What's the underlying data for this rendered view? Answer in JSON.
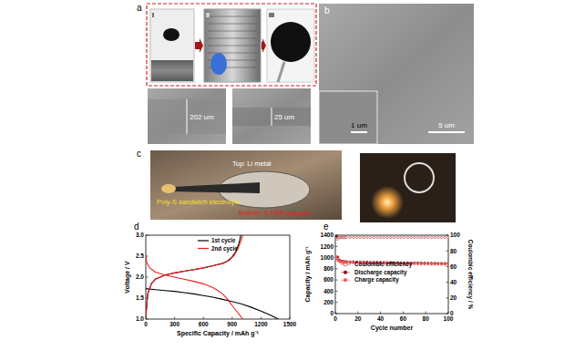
{
  "panels": {
    "a": {
      "label": "a",
      "steps": [
        "I",
        "II",
        "III"
      ],
      "thickness": [
        "202 um",
        "25 um"
      ]
    },
    "b": {
      "label": "b",
      "scale_bars": [
        "1 um",
        "5 um"
      ]
    },
    "c": {
      "label": "c",
      "annotations": [
        "Top: Li metal",
        "Poly-S sandwich electrolyte",
        "Bottom: S PAN cathode"
      ]
    }
  },
  "chart_data": [
    {
      "type": "line",
      "title": "d",
      "x_label": "Specific Capacity / mAh g⁻¹",
      "y_label": "Voltage / V",
      "xlim": [
        0,
        1500
      ],
      "xticks": [
        0,
        300,
        600,
        900,
        1200,
        1500
      ],
      "ylim": [
        1.0,
        3.0
      ],
      "yticks": [
        {
          "value": 1.0,
          "label": "1.0"
        },
        1.5,
        {
          "value": 2.0,
          "label": "2.0"
        },
        2.5,
        {
          "value": 3.0,
          "label": "3.0"
        }
      ],
      "legend": "upper center",
      "series": [
        {
          "name": "1st cycle",
          "color": "#000000",
          "x": [
            0,
            20,
            100,
            200,
            300,
            400,
            500,
            600,
            700,
            800,
            900,
            1000,
            1100,
            1200,
            1300,
            1380,
            null,
            0,
            20,
            60,
            100,
            200,
            300,
            400,
            500,
            600,
            700,
            800,
            850,
            900,
            940,
            970,
            990
          ],
          "values": [
            1.72,
            1.72,
            1.7,
            1.68,
            1.66,
            1.63,
            1.6,
            1.56,
            1.52,
            1.47,
            1.42,
            1.36,
            1.28,
            1.19,
            1.09,
            1.0,
            null,
            1.05,
            1.6,
            1.85,
            1.95,
            2.05,
            2.1,
            2.14,
            2.18,
            2.22,
            2.27,
            2.33,
            2.38,
            2.48,
            2.62,
            2.8,
            3.0
          ]
        },
        {
          "name": "2nd cycle",
          "color": "#e8211d",
          "x": [
            0,
            10,
            40,
            100,
            200,
            300,
            400,
            500,
            600,
            700,
            750,
            800,
            850,
            900,
            950,
            1010,
            null,
            0,
            20,
            60,
            100,
            200,
            300,
            400,
            500,
            600,
            700,
            800,
            870,
            920,
            960,
            990,
            1010
          ],
          "values": [
            2.5,
            2.35,
            2.22,
            2.12,
            2.05,
            2.0,
            1.95,
            1.9,
            1.84,
            1.75,
            1.68,
            1.6,
            1.48,
            1.32,
            1.18,
            1.0,
            null,
            1.05,
            1.6,
            1.85,
            1.95,
            2.05,
            2.1,
            2.14,
            2.18,
            2.22,
            2.27,
            2.32,
            2.4,
            2.52,
            2.68,
            2.85,
            3.0
          ]
        }
      ]
    },
    {
      "type": "scatter",
      "title": "e",
      "x_label": "Cycle number",
      "y_label": "Capacity / mAh g⁻¹",
      "y2_label": "Coulombic efficiency / %",
      "xlim": [
        0,
        100
      ],
      "xticks": [
        0,
        20,
        40,
        60,
        80,
        100
      ],
      "ylim": [
        0,
        1400
      ],
      "yticks": [
        0,
        200,
        400,
        600,
        800,
        1000,
        1200,
        1400
      ],
      "y2lim": [
        0,
        100
      ],
      "y2ticks": [
        0,
        20,
        40,
        60,
        80,
        100
      ],
      "legend": "center left",
      "x": [
        1,
        2,
        3,
        4,
        5,
        6,
        7,
        8,
        9,
        10,
        13,
        16,
        19,
        22,
        25,
        28,
        31,
        34,
        37,
        40,
        43,
        46,
        49,
        52,
        55,
        58,
        61,
        64,
        67,
        70,
        73,
        76,
        79,
        82,
        85,
        88,
        91,
        94,
        97,
        100
      ],
      "series": [
        {
          "name": "Coulombic efficiency",
          "color": "#b02a2a",
          "marker": "open-circle",
          "axis": "y2",
          "values": [
            72,
            95,
            97,
            97.2,
            97.1,
            97.3,
            97.2,
            97.1,
            97.3,
            97.2,
            97.1,
            97.3,
            97.2,
            97.1,
            97.3,
            97.2,
            97.1,
            97.3,
            97.2,
            97.1,
            97.3,
            97.2,
            97.1,
            97.3,
            97.2,
            97.1,
            97.3,
            97.2,
            97.1,
            97.3,
            97.2,
            97.1,
            97.3,
            97.2,
            97.1,
            97.3,
            97.2,
            97.1,
            97.3,
            97.2
          ]
        },
        {
          "name": "Discharge capacity",
          "color": "#8b1010",
          "marker": "circle",
          "values": [
            1380,
            1010,
            960,
            945,
            935,
            930,
            928,
            926,
            925,
            924,
            922,
            921,
            920,
            919,
            918,
            917,
            916,
            915,
            914,
            913,
            912,
            911,
            910,
            909,
            908,
            907,
            906,
            905,
            904,
            903,
            902,
            901,
            900,
            899,
            898,
            897,
            896,
            895,
            894,
            893
          ]
        },
        {
          "name": "Charge capacity",
          "color": "#ee5a5a",
          "marker": "circle",
          "values": [
            1000,
            960,
            940,
            930,
            922,
            918,
            915,
            913,
            912,
            911,
            909,
            908,
            907,
            906,
            905,
            904,
            903,
            902,
            901,
            900,
            899,
            898,
            897,
            896,
            895,
            894,
            893,
            892,
            891,
            890,
            889,
            888,
            887,
            886,
            885,
            884,
            883,
            882,
            881,
            880
          ]
        }
      ]
    }
  ]
}
